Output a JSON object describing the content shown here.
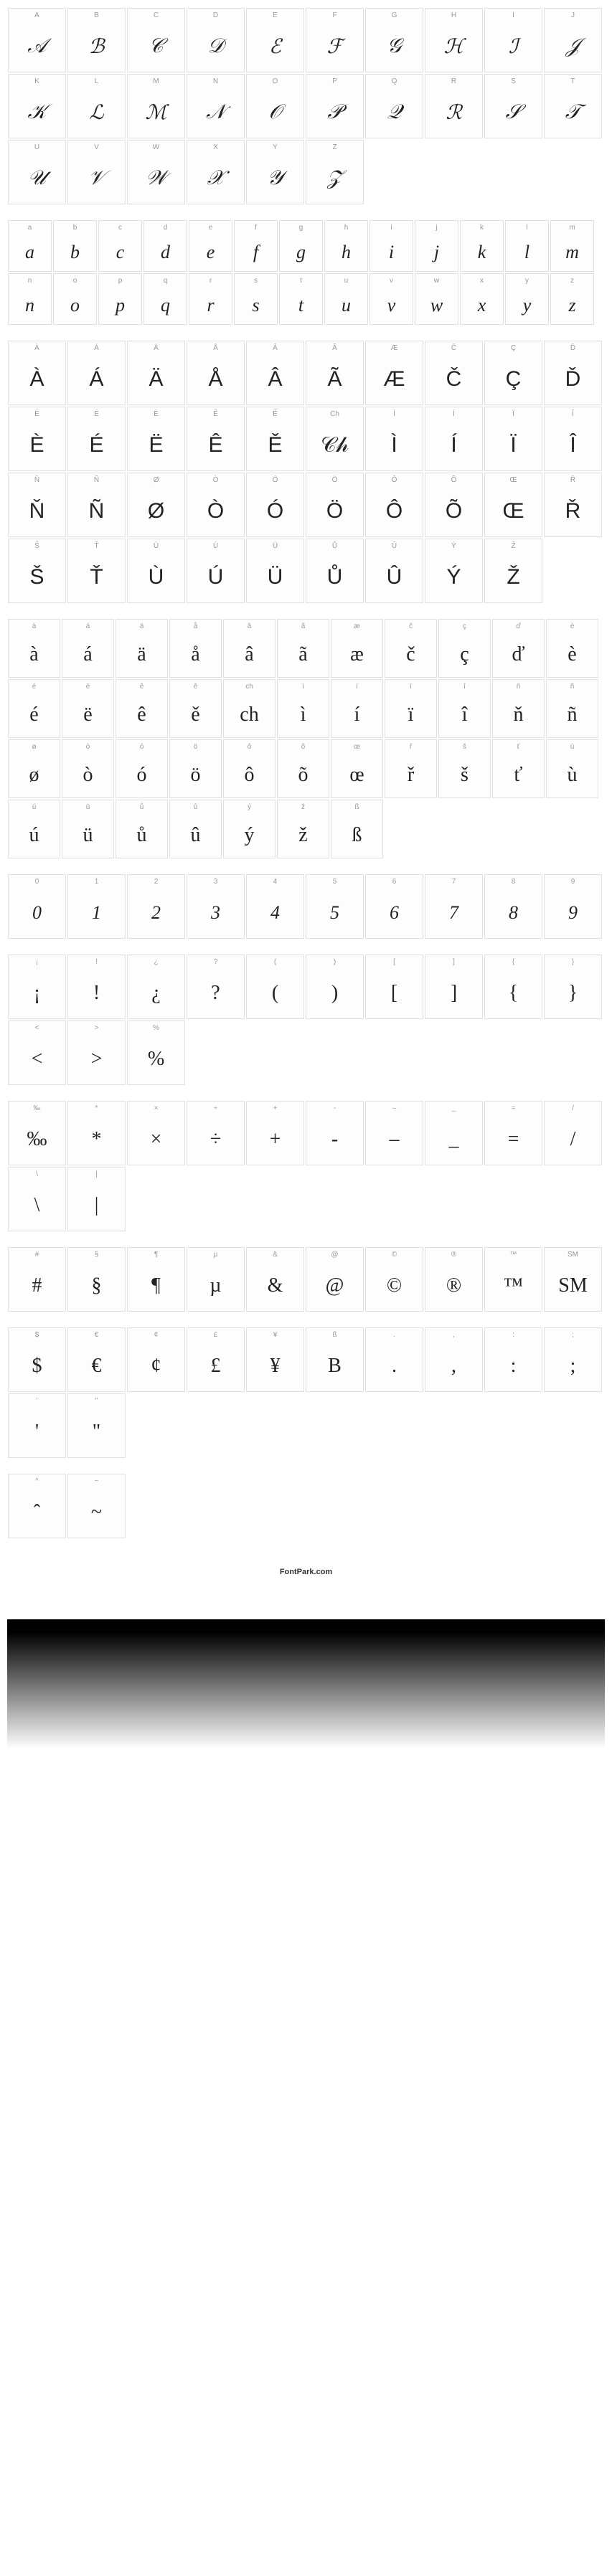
{
  "uppercase": [
    {
      "label": "A",
      "glyph": "𝒜"
    },
    {
      "label": "B",
      "glyph": "ℬ"
    },
    {
      "label": "C",
      "glyph": "𝒞"
    },
    {
      "label": "D",
      "glyph": "𝒟"
    },
    {
      "label": "E",
      "glyph": "ℰ"
    },
    {
      "label": "F",
      "glyph": "ℱ"
    },
    {
      "label": "G",
      "glyph": "𝒢"
    },
    {
      "label": "H",
      "glyph": "ℋ"
    },
    {
      "label": "I",
      "glyph": "ℐ"
    },
    {
      "label": "J",
      "glyph": "𝒥"
    },
    {
      "label": "K",
      "glyph": "𝒦"
    },
    {
      "label": "L",
      "glyph": "ℒ"
    },
    {
      "label": "M",
      "glyph": "ℳ"
    },
    {
      "label": "N",
      "glyph": "𝒩"
    },
    {
      "label": "O",
      "glyph": "𝒪"
    },
    {
      "label": "P",
      "glyph": "𝒫"
    },
    {
      "label": "Q",
      "glyph": "𝒬"
    },
    {
      "label": "R",
      "glyph": "ℛ"
    },
    {
      "label": "S",
      "glyph": "𝒮"
    },
    {
      "label": "T",
      "glyph": "𝒯"
    },
    {
      "label": "U",
      "glyph": "𝒰"
    },
    {
      "label": "V",
      "glyph": "𝒱"
    },
    {
      "label": "W",
      "glyph": "𝒲"
    },
    {
      "label": "X",
      "glyph": "𝒳"
    },
    {
      "label": "Y",
      "glyph": "𝒴"
    },
    {
      "label": "Z",
      "glyph": "𝒵"
    }
  ],
  "lowercase": [
    {
      "label": "a",
      "glyph": "a"
    },
    {
      "label": "b",
      "glyph": "b"
    },
    {
      "label": "c",
      "glyph": "c"
    },
    {
      "label": "d",
      "glyph": "d"
    },
    {
      "label": "e",
      "glyph": "e"
    },
    {
      "label": "f",
      "glyph": "f"
    },
    {
      "label": "g",
      "glyph": "g"
    },
    {
      "label": "h",
      "glyph": "h"
    },
    {
      "label": "i",
      "glyph": "i"
    },
    {
      "label": "j",
      "glyph": "j"
    },
    {
      "label": "k",
      "glyph": "k"
    },
    {
      "label": "l",
      "glyph": "l"
    },
    {
      "label": "m",
      "glyph": "m"
    },
    {
      "label": "n",
      "glyph": "n"
    },
    {
      "label": "o",
      "glyph": "o"
    },
    {
      "label": "p",
      "glyph": "p"
    },
    {
      "label": "q",
      "glyph": "q"
    },
    {
      "label": "r",
      "glyph": "r"
    },
    {
      "label": "s",
      "glyph": "s"
    },
    {
      "label": "t",
      "glyph": "t"
    },
    {
      "label": "u",
      "glyph": "u"
    },
    {
      "label": "v",
      "glyph": "v"
    },
    {
      "label": "w",
      "glyph": "w"
    },
    {
      "label": "x",
      "glyph": "x"
    },
    {
      "label": "y",
      "glyph": "y"
    },
    {
      "label": "z",
      "glyph": "z"
    }
  ],
  "accent_upper": [
    {
      "label": "À",
      "glyph": "À"
    },
    {
      "label": "Á",
      "glyph": "Á"
    },
    {
      "label": "Ä",
      "glyph": "Ä"
    },
    {
      "label": "Å",
      "glyph": "Å"
    },
    {
      "label": "Â",
      "glyph": "Â"
    },
    {
      "label": "Ã",
      "glyph": "Ã"
    },
    {
      "label": "Æ",
      "glyph": "Æ"
    },
    {
      "label": "Č",
      "glyph": "Č"
    },
    {
      "label": "Ç",
      "glyph": "Ç"
    },
    {
      "label": "Ď",
      "glyph": "Ď"
    },
    {
      "label": "È",
      "glyph": "È"
    },
    {
      "label": "É",
      "glyph": "É"
    },
    {
      "label": "Ë",
      "glyph": "Ë"
    },
    {
      "label": "Ê",
      "glyph": "Ê"
    },
    {
      "label": "Ě",
      "glyph": "Ě"
    },
    {
      "label": "Ch",
      "glyph": "𝒞𝒽"
    },
    {
      "label": "Ì",
      "glyph": "Ì"
    },
    {
      "label": "Í",
      "glyph": "Í"
    },
    {
      "label": "Ï",
      "glyph": "Ï"
    },
    {
      "label": "Î",
      "glyph": "Î"
    },
    {
      "label": "Ň",
      "glyph": "Ň"
    },
    {
      "label": "Ñ",
      "glyph": "Ñ"
    },
    {
      "label": "Ø",
      "glyph": "Ø"
    },
    {
      "label": "Ò",
      "glyph": "Ò"
    },
    {
      "label": "Ó",
      "glyph": "Ó"
    },
    {
      "label": "Ö",
      "glyph": "Ö"
    },
    {
      "label": "Ô",
      "glyph": "Ô"
    },
    {
      "label": "Õ",
      "glyph": "Õ"
    },
    {
      "label": "Œ",
      "glyph": "Œ"
    },
    {
      "label": "Ř",
      "glyph": "Ř"
    },
    {
      "label": "Š",
      "glyph": "Š"
    },
    {
      "label": "Ť",
      "glyph": "Ť"
    },
    {
      "label": "Ù",
      "glyph": "Ù"
    },
    {
      "label": "Ú",
      "glyph": "Ú"
    },
    {
      "label": "Ü",
      "glyph": "Ü"
    },
    {
      "label": "Ů",
      "glyph": "Ů"
    },
    {
      "label": "Û",
      "glyph": "Û"
    },
    {
      "label": "Ý",
      "glyph": "Ý"
    },
    {
      "label": "Ž",
      "glyph": "Ž"
    }
  ],
  "accent_lower": [
    {
      "label": "à",
      "glyph": "à"
    },
    {
      "label": "á",
      "glyph": "á"
    },
    {
      "label": "ä",
      "glyph": "ä"
    },
    {
      "label": "å",
      "glyph": "å"
    },
    {
      "label": "â",
      "glyph": "â"
    },
    {
      "label": "ã",
      "glyph": "ã"
    },
    {
      "label": "æ",
      "glyph": "æ"
    },
    {
      "label": "č",
      "glyph": "č"
    },
    {
      "label": "ç",
      "glyph": "ç"
    },
    {
      "label": "ď",
      "glyph": "ď"
    },
    {
      "label": "è",
      "glyph": "è"
    },
    {
      "label": "é",
      "glyph": "é"
    },
    {
      "label": "ë",
      "glyph": "ë"
    },
    {
      "label": "ê",
      "glyph": "ê"
    },
    {
      "label": "ě",
      "glyph": "ě"
    },
    {
      "label": "ch",
      "glyph": "ch"
    },
    {
      "label": "ì",
      "glyph": "ì"
    },
    {
      "label": "í",
      "glyph": "í"
    },
    {
      "label": "ï",
      "glyph": "ï"
    },
    {
      "label": "î",
      "glyph": "î"
    },
    {
      "label": "ň",
      "glyph": "ň"
    },
    {
      "label": "ñ",
      "glyph": "ñ"
    },
    {
      "label": "ø",
      "glyph": "ø"
    },
    {
      "label": "ò",
      "glyph": "ò"
    },
    {
      "label": "ó",
      "glyph": "ó"
    },
    {
      "label": "ö",
      "glyph": "ö"
    },
    {
      "label": "ô",
      "glyph": "ô"
    },
    {
      "label": "õ",
      "glyph": "õ"
    },
    {
      "label": "œ",
      "glyph": "œ"
    },
    {
      "label": "ř",
      "glyph": "ř"
    },
    {
      "label": "š",
      "glyph": "š"
    },
    {
      "label": "ť",
      "glyph": "ť"
    },
    {
      "label": "ù",
      "glyph": "ù"
    },
    {
      "label": "ú",
      "glyph": "ú"
    },
    {
      "label": "ü",
      "glyph": "ü"
    },
    {
      "label": "ů",
      "glyph": "ů"
    },
    {
      "label": "û",
      "glyph": "û"
    },
    {
      "label": "ý",
      "glyph": "ý"
    },
    {
      "label": "ž",
      "glyph": "ž"
    },
    {
      "label": "ß",
      "glyph": "ß"
    }
  ],
  "digits": [
    {
      "label": "0",
      "glyph": "0"
    },
    {
      "label": "1",
      "glyph": "1"
    },
    {
      "label": "2",
      "glyph": "2"
    },
    {
      "label": "3",
      "glyph": "3"
    },
    {
      "label": "4",
      "glyph": "4"
    },
    {
      "label": "5",
      "glyph": "5"
    },
    {
      "label": "6",
      "glyph": "6"
    },
    {
      "label": "7",
      "glyph": "7"
    },
    {
      "label": "8",
      "glyph": "8"
    },
    {
      "label": "9",
      "glyph": "9"
    }
  ],
  "symbols1": [
    {
      "label": "¡",
      "glyph": "¡"
    },
    {
      "label": "!",
      "glyph": "!"
    },
    {
      "label": "¿",
      "glyph": "¿"
    },
    {
      "label": "?",
      "glyph": "?"
    },
    {
      "label": "(",
      "glyph": "("
    },
    {
      "label": ")",
      "glyph": ")"
    },
    {
      "label": "[",
      "glyph": "["
    },
    {
      "label": "]",
      "glyph": "]"
    },
    {
      "label": "{",
      "glyph": "{"
    },
    {
      "label": "}",
      "glyph": "}"
    },
    {
      "label": "<",
      "glyph": "<"
    },
    {
      "label": ">",
      "glyph": ">"
    },
    {
      "label": "%",
      "glyph": "%"
    }
  ],
  "symbols2": [
    {
      "label": "‰",
      "glyph": "‰"
    },
    {
      "label": "*",
      "glyph": "*"
    },
    {
      "label": "×",
      "glyph": "×"
    },
    {
      "label": "÷",
      "glyph": "÷"
    },
    {
      "label": "+",
      "glyph": "+"
    },
    {
      "label": "-",
      "glyph": "-"
    },
    {
      "label": "–",
      "glyph": "–"
    },
    {
      "label": "_",
      "glyph": "_"
    },
    {
      "label": "=",
      "glyph": "="
    },
    {
      "label": "/",
      "glyph": "/"
    },
    {
      "label": "\\",
      "glyph": "\\"
    },
    {
      "label": "|",
      "glyph": "|"
    }
  ],
  "symbols3": [
    {
      "label": "#",
      "glyph": "#"
    },
    {
      "label": "§",
      "glyph": "§"
    },
    {
      "label": "¶",
      "glyph": "¶"
    },
    {
      "label": "µ",
      "glyph": "µ"
    },
    {
      "label": "&",
      "glyph": "&"
    },
    {
      "label": "@",
      "glyph": "@"
    },
    {
      "label": "©",
      "glyph": "©"
    },
    {
      "label": "®",
      "glyph": "®"
    },
    {
      "label": "™",
      "glyph": "™"
    },
    {
      "label": "SM",
      "glyph": "SM"
    }
  ],
  "symbols4": [
    {
      "label": "$",
      "glyph": "$"
    },
    {
      "label": "€",
      "glyph": "€"
    },
    {
      "label": "¢",
      "glyph": "¢"
    },
    {
      "label": "£",
      "glyph": "£"
    },
    {
      "label": "¥",
      "glyph": "¥"
    },
    {
      "label": "ß",
      "glyph": "B"
    },
    {
      "label": ".",
      "glyph": "."
    },
    {
      "label": ",",
      "glyph": ","
    },
    {
      "label": ":",
      "glyph": ":"
    },
    {
      "label": ";",
      "glyph": ";"
    },
    {
      "label": "'",
      "glyph": "'"
    },
    {
      "label": "\"",
      "glyph": "\""
    }
  ],
  "symbols5": [
    {
      "label": "^",
      "glyph": "ˆ"
    },
    {
      "label": "~",
      "glyph": "~"
    }
  ],
  "footer": "FontPark.com"
}
